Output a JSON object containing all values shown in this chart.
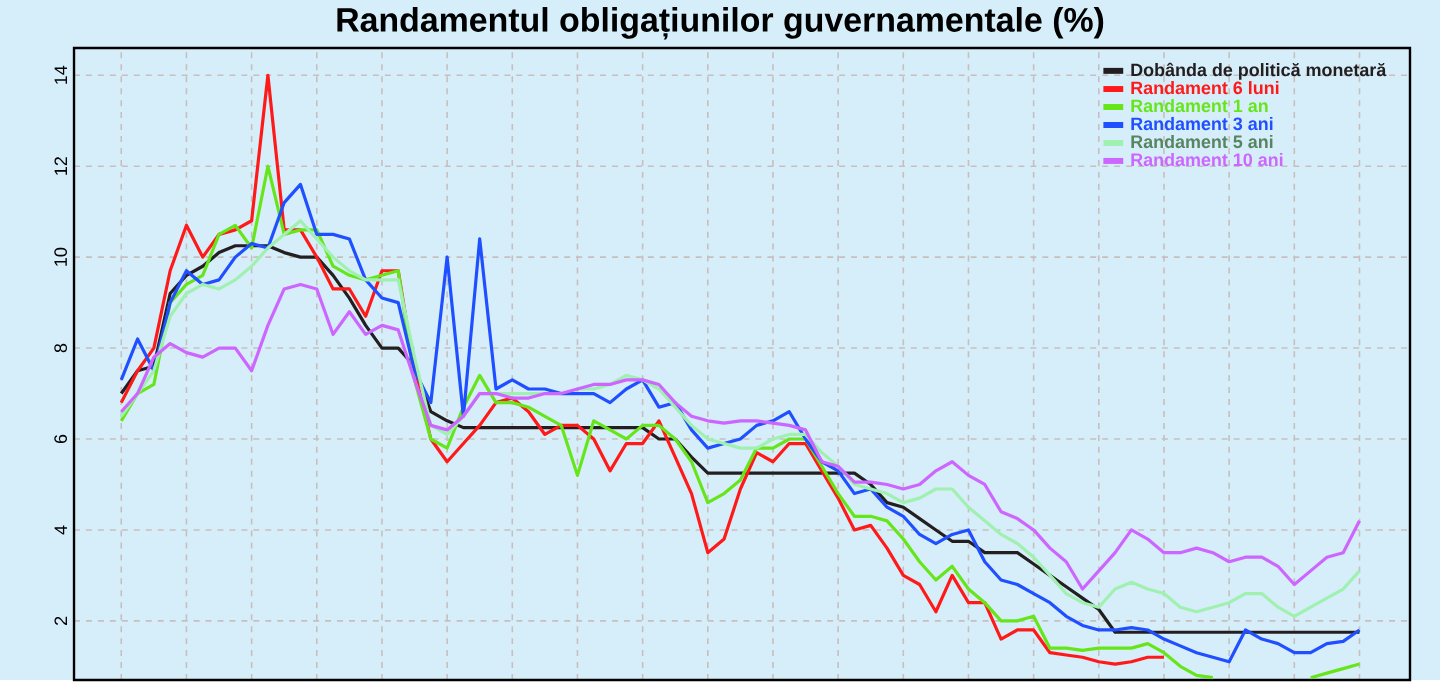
{
  "chart_data": {
    "type": "line",
    "title": "Randamentul obligațiunilor guvernamentale (%)",
    "categories": [
      null,
      null,
      null,
      null,
      null,
      null,
      null,
      null,
      null,
      null,
      null,
      null,
      null,
      null,
      null,
      null,
      null,
      null,
      null,
      null,
      null,
      null,
      null,
      null,
      null,
      null,
      null,
      null,
      null,
      null,
      null,
      null,
      null,
      null,
      null,
      null,
      null,
      null,
      null,
      null,
      null,
      null,
      null,
      null,
      null,
      null,
      null,
      null,
      null,
      null,
      null,
      null,
      null,
      null,
      null,
      null,
      null,
      null,
      null,
      null,
      null,
      null,
      null,
      null,
      null,
      null,
      null,
      null,
      null,
      null,
      null,
      null,
      null,
      null,
      null,
      null,
      null
    ],
    "ylim": [
      0.7,
      14.6
    ],
    "yticks": [
      2,
      4,
      6,
      8,
      10,
      12,
      14
    ],
    "grid": true,
    "legend": "top right",
    "line_style": "solid",
    "marker": "none",
    "series": [
      {
        "name": "Dobânda de politică monetară",
        "color": "#231f20",
        "values": [
          7.0,
          7.5,
          7.6,
          9.2,
          9.6,
          9.8,
          10.1,
          10.25,
          10.25,
          10.25,
          10.1,
          10.0,
          10.0,
          9.6,
          9.1,
          8.5,
          8.0,
          8.0,
          7.6,
          6.6,
          6.4,
          6.25,
          6.25,
          6.25,
          6.25,
          6.25,
          6.25,
          6.25,
          6.25,
          6.25,
          6.25,
          6.25,
          6.25,
          6.0,
          6.0,
          5.6,
          5.25,
          5.25,
          5.25,
          5.25,
          5.25,
          5.25,
          5.25,
          5.25,
          5.25,
          5.25,
          5.0,
          4.6,
          4.5,
          4.25,
          4.0,
          3.75,
          3.75,
          3.5,
          3.5,
          3.5,
          3.25,
          3.0,
          2.75,
          2.5,
          2.25,
          1.75,
          1.75,
          1.75,
          1.75,
          1.75,
          1.75,
          1.75,
          1.75,
          1.75,
          1.75,
          1.75,
          1.75,
          1.75,
          1.75,
          1.75,
          1.75
        ]
      },
      {
        "name": "Randament 6 luni",
        "color": "#ff1a1a",
        "values": [
          6.8,
          7.5,
          8.0,
          9.7,
          10.7,
          10.0,
          10.5,
          10.6,
          10.8,
          14.0,
          10.6,
          10.6,
          10.0,
          9.3,
          9.3,
          8.7,
          9.7,
          9.7,
          7.5,
          6.0,
          5.5,
          5.9,
          6.3,
          6.8,
          6.9,
          6.6,
          6.1,
          6.3,
          6.3,
          6.0,
          5.3,
          5.9,
          5.9,
          6.4,
          5.6,
          4.8,
          3.5,
          3.8,
          4.9,
          5.7,
          5.5,
          5.9,
          5.9,
          5.3,
          4.7,
          4.0,
          4.1,
          3.6,
          3.0,
          2.8,
          2.2,
          3.0,
          2.4,
          2.4,
          1.6,
          1.8,
          1.8,
          1.3,
          1.25,
          1.2,
          1.1,
          1.05,
          1.1,
          1.2,
          1.2,
          null,
          null,
          null,
          null,
          null,
          null,
          null,
          null,
          null,
          null,
          null,
          null
        ]
      },
      {
        "name": "Randament 1 an",
        "color": "#66e61a",
        "values": [
          6.4,
          7.0,
          7.2,
          9.0,
          9.4,
          9.6,
          10.5,
          10.7,
          10.2,
          12.0,
          10.5,
          10.6,
          10.6,
          9.8,
          9.6,
          9.5,
          9.6,
          9.7,
          7.3,
          6.0,
          5.8,
          6.7,
          7.4,
          6.8,
          6.8,
          6.7,
          6.5,
          6.3,
          5.2,
          6.4,
          6.2,
          6.0,
          6.3,
          6.3,
          6.0,
          5.5,
          4.6,
          4.8,
          5.1,
          5.8,
          5.8,
          6.0,
          6.0,
          5.4,
          4.8,
          4.3,
          4.3,
          4.2,
          3.8,
          3.3,
          2.9,
          3.2,
          2.7,
          2.4,
          2.0,
          2.0,
          2.1,
          1.4,
          1.4,
          1.35,
          1.4,
          1.4,
          1.4,
          1.5,
          1.3,
          1.0,
          0.8,
          0.75,
          null,
          null,
          null,
          null,
          null,
          0.75,
          0.85,
          0.95,
          1.05
        ]
      },
      {
        "name": "Randament 3 ani",
        "color": "#1f4fff",
        "values": [
          7.3,
          8.2,
          7.5,
          9.0,
          9.7,
          9.4,
          9.5,
          10.0,
          10.3,
          10.2,
          11.2,
          11.6,
          10.5,
          10.5,
          10.4,
          9.5,
          9.1,
          9.0,
          7.5,
          6.8,
          10.0,
          6.5,
          10.4,
          7.1,
          7.3,
          7.1,
          7.1,
          7.0,
          7.0,
          7.0,
          6.8,
          7.1,
          7.3,
          6.7,
          6.8,
          6.2,
          5.8,
          5.9,
          6.0,
          6.3,
          6.4,
          6.6,
          6.0,
          5.5,
          5.3,
          4.8,
          4.9,
          4.5,
          4.3,
          3.9,
          3.7,
          3.9,
          4.0,
          3.3,
          2.9,
          2.8,
          2.6,
          2.4,
          2.1,
          1.9,
          1.8,
          1.8,
          1.85,
          1.8,
          1.6,
          1.45,
          1.3,
          1.2,
          1.1,
          1.8,
          1.6,
          1.5,
          1.3,
          1.3,
          1.5,
          1.55,
          1.8
        ]
      },
      {
        "name": "Randament 5 ani",
        "color": "#a0f0b0",
        "values": [
          6.5,
          7.0,
          7.5,
          8.7,
          9.2,
          9.4,
          9.3,
          9.5,
          9.8,
          10.2,
          10.5,
          10.8,
          10.4,
          10.0,
          9.7,
          9.5,
          9.5,
          9.5,
          7.8,
          6.3,
          6.1,
          6.5,
          7.0,
          7.0,
          7.0,
          7.0,
          7.0,
          null,
          7.1,
          7.1,
          7.2,
          7.4,
          7.3,
          7.1,
          6.7,
          6.3,
          6.0,
          5.9,
          5.8,
          5.8,
          6.0,
          6.1,
          6.1,
          5.7,
          5.4,
          5.0,
          4.9,
          4.8,
          4.6,
          4.7,
          4.9,
          4.9,
          4.5,
          4.2,
          3.9,
          3.7,
          3.4,
          3.0,
          2.6,
          2.4,
          2.3,
          2.7,
          2.85,
          2.7,
          2.6,
          2.3,
          2.2,
          2.3,
          2.4,
          2.6,
          2.6,
          2.3,
          2.1,
          2.3,
          2.5,
          2.7,
          3.1
        ]
      },
      {
        "name": "Randament 10 ani",
        "color": "#cc66ff",
        "values": [
          6.6,
          7.0,
          7.8,
          8.1,
          7.9,
          7.8,
          8.0,
          8.0,
          7.5,
          8.5,
          9.3,
          9.4,
          9.3,
          8.3,
          8.8,
          8.3,
          8.5,
          8.4,
          7.3,
          6.3,
          6.2,
          6.5,
          7.0,
          7.0,
          6.9,
          6.9,
          7.0,
          7.0,
          7.1,
          7.2,
          7.2,
          7.3,
          7.3,
          7.2,
          6.8,
          6.5,
          6.4,
          6.35,
          6.4,
          6.4,
          6.35,
          6.3,
          6.2,
          5.5,
          5.4,
          5.05,
          5.05,
          5.0,
          4.9,
          5.0,
          5.3,
          5.5,
          5.2,
          5.0,
          4.4,
          4.25,
          4.0,
          3.6,
          3.3,
          2.7,
          3.1,
          3.5,
          4.0,
          3.8,
          3.5,
          3.5,
          3.6,
          3.5,
          3.3,
          3.4,
          3.4,
          3.2,
          2.8,
          3.1,
          3.4,
          3.5,
          4.2
        ]
      }
    ]
  }
}
